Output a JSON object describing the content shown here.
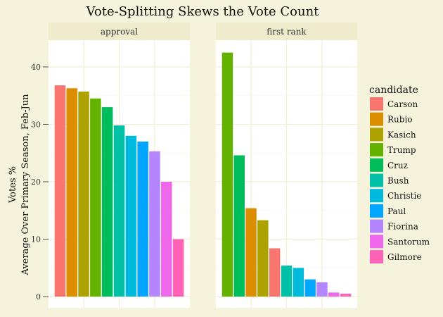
{
  "chart_data": {
    "type": "bar",
    "title": "Vote-Splitting Skews the Vote Count",
    "ylabel_lines": [
      "Votes %",
      "Average Over Primary Season, Feb-Jun"
    ],
    "xlabel": "",
    "ylim": [
      0,
      45
    ],
    "yticks": [
      0,
      10,
      20,
      30,
      40
    ],
    "grid": true,
    "legend": {
      "title": "candidate",
      "position": "right",
      "entries": [
        {
          "name": "Carson",
          "color": "#F8766D"
        },
        {
          "name": "Rubio",
          "color": "#DB8E00"
        },
        {
          "name": "Kasich",
          "color": "#AEA200"
        },
        {
          "name": "Trump",
          "color": "#64B200"
        },
        {
          "name": "Cruz",
          "color": "#00BD5C"
        },
        {
          "name": "Bush",
          "color": "#00C1A7"
        },
        {
          "name": "Christie",
          "color": "#00BADE"
        },
        {
          "name": "Paul",
          "color": "#00A6FF"
        },
        {
          "name": "Fiorina",
          "color": "#B385FF"
        },
        {
          "name": "Santorum",
          "color": "#EF67EB"
        },
        {
          "name": "Gilmore",
          "color": "#FF63B6"
        }
      ]
    },
    "panels": [
      {
        "label": "approval",
        "bars": [
          {
            "candidate": "Carson",
            "value": 36.8
          },
          {
            "candidate": "Rubio",
            "value": 36.3
          },
          {
            "candidate": "Kasich",
            "value": 35.7
          },
          {
            "candidate": "Trump",
            "value": 34.5
          },
          {
            "candidate": "Cruz",
            "value": 33.0
          },
          {
            "candidate": "Bush",
            "value": 29.8
          },
          {
            "candidate": "Christie",
            "value": 28.0
          },
          {
            "candidate": "Paul",
            "value": 27.0
          },
          {
            "candidate": "Fiorina",
            "value": 25.3
          },
          {
            "candidate": "Santorum",
            "value": 20.0
          },
          {
            "candidate": "Gilmore",
            "value": 10.0
          }
        ]
      },
      {
        "label": "first rank",
        "bars": [
          {
            "candidate": "Trump",
            "value": 42.5
          },
          {
            "candidate": "Cruz",
            "value": 24.6
          },
          {
            "candidate": "Rubio",
            "value": 15.4
          },
          {
            "candidate": "Kasich",
            "value": 13.3
          },
          {
            "candidate": "Carson",
            "value": 8.4
          },
          {
            "candidate": "Bush",
            "value": 5.4
          },
          {
            "candidate": "Christie",
            "value": 5.0
          },
          {
            "candidate": "Paul",
            "value": 3.0
          },
          {
            "candidate": "Fiorina",
            "value": 2.5
          },
          {
            "candidate": "Santorum",
            "value": 0.7
          },
          {
            "candidate": "Gilmore",
            "value": 0.5
          }
        ]
      }
    ]
  }
}
